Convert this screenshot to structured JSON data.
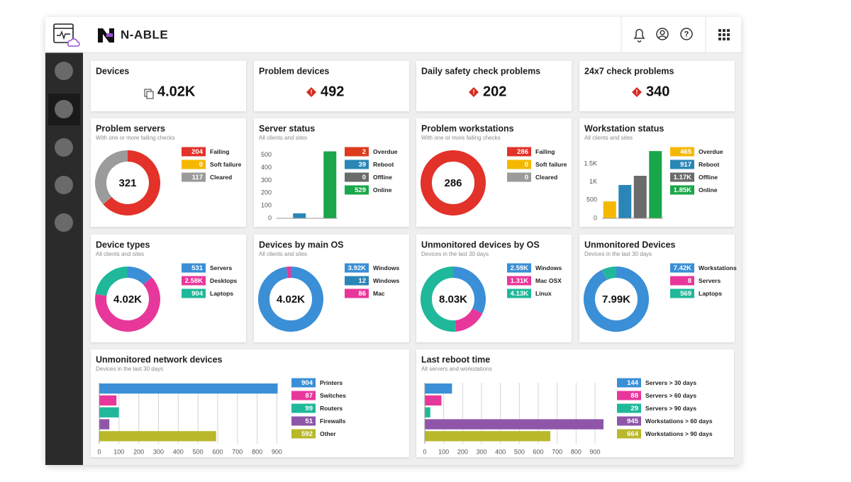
{
  "brand": "N-ABLE",
  "kpis": [
    {
      "title": "Devices",
      "value": "4.02K"
    },
    {
      "title": "Problem devices",
      "value": 492
    },
    {
      "title": "Daily safety check problems",
      "value": 202
    },
    {
      "title": "24x7 check problems",
      "value": 340
    }
  ],
  "chart_data": [
    {
      "type": "donut",
      "title": "Problem servers",
      "subtitle": "With one or more failing checks",
      "total": 321,
      "categories": [
        "Failing",
        "Soft failure",
        "Cleared"
      ],
      "values": [
        204,
        0,
        117
      ],
      "colors": [
        "#e2322a",
        "#f5b800",
        "#9b9b9b"
      ]
    },
    {
      "type": "bar",
      "title": "Server status",
      "subtitle": "All clients and sites",
      "categories": [
        "Overdue",
        "Reboot",
        "Offline",
        "Online"
      ],
      "values": [
        2,
        39,
        0,
        529
      ],
      "colors": [
        "#dd3a1e",
        "#2a86b6",
        "#6b6b6b",
        "#1aa64a"
      ],
      "ylim": [
        0,
        560
      ],
      "yticks": [
        0,
        100,
        200,
        300,
        400,
        500
      ]
    },
    {
      "type": "donut",
      "title": "Problem workstations",
      "subtitle": "With one or more failing checks",
      "total": 286,
      "categories": [
        "Failing",
        "Soft failure",
        "Cleared"
      ],
      "values": [
        286,
        0,
        0
      ],
      "colors": [
        "#e2322a",
        "#f5b800",
        "#9b9b9b"
      ]
    },
    {
      "type": "bar",
      "title": "Workstation status",
      "subtitle": "All clients and sites",
      "categories": [
        "Overdue",
        "Reboot",
        "Offline",
        "Online"
      ],
      "values": [
        465,
        917,
        1170,
        1850
      ],
      "value_labels": [
        "465",
        "917",
        "1.17K",
        "1.85K"
      ],
      "colors": [
        "#f5b800",
        "#2a86b6",
        "#6b6b6b",
        "#1aa64a"
      ],
      "ylim": [
        0,
        1950
      ],
      "yticks": [
        0,
        500,
        {
          "value": 1000,
          "label": "1K"
        },
        {
          "value": 1500,
          "label": "1.5K"
        }
      ]
    },
    {
      "type": "donut",
      "title": "Device types",
      "subtitle": "All clients and sites",
      "total": "4.02K",
      "categories": [
        "Servers",
        "Desktops",
        "Laptops"
      ],
      "values": [
        531,
        2580,
        904
      ],
      "value_labels": [
        "531",
        "2.58K",
        "904"
      ],
      "colors": [
        "#3a8fd6",
        "#e8379a",
        "#1fb89a"
      ]
    },
    {
      "type": "donut",
      "title": "Devices by main OS",
      "subtitle": "All clients and sites",
      "total": "4.02K",
      "categories": [
        "Windows",
        "Windows",
        "Mac"
      ],
      "values": [
        3920,
        12,
        86
      ],
      "value_labels": [
        "3.92K",
        "12",
        "86"
      ],
      "colors": [
        "#3a8fd6",
        "#2a86b6",
        "#e8379a"
      ]
    },
    {
      "type": "donut",
      "title": "Unmonitored devices by OS",
      "subtitle": "Devices in the last 30 days",
      "total": "8.03K",
      "categories": [
        "Windows",
        "Mac OSX",
        "Linux"
      ],
      "values": [
        2590,
        1310,
        4130
      ],
      "value_labels": [
        "2.59K",
        "1.31K",
        "4.13K"
      ],
      "colors": [
        "#3a8fd6",
        "#e8379a",
        "#1fb89a"
      ]
    },
    {
      "type": "donut",
      "title": "Unmonitored Devices",
      "subtitle": "Devices in the last 30 days",
      "total": "7.99K",
      "categories": [
        "Workstations",
        "Servers",
        "Laptops"
      ],
      "values": [
        7420,
        8,
        569
      ],
      "value_labels": [
        "7.42K",
        "8",
        "569"
      ],
      "colors": [
        "#3a8fd6",
        "#e8379a",
        "#1fb89a"
      ]
    },
    {
      "type": "hbar",
      "title": "Unmonitored network devices",
      "subtitle": "Devices in the last 30 days",
      "categories": [
        "Printers",
        "Switches",
        "Routers",
        "Firewalls",
        "Other"
      ],
      "values": [
        904,
        87,
        99,
        51,
        592
      ],
      "colors": [
        "#3a8fd6",
        "#e8379a",
        "#1fb89a",
        "#8e55a8",
        "#b8b82a"
      ],
      "xlim": [
        0,
        920
      ],
      "xticks": [
        0,
        100,
        200,
        300,
        400,
        500,
        600,
        700,
        800,
        900
      ],
      "grid": true
    },
    {
      "type": "hbar",
      "title": "Last reboot time",
      "subtitle": "All servers and workstations",
      "categories": [
        "Servers > 30 days",
        "Servers > 60 days",
        "Servers > 90 days",
        "Workstations > 60 days",
        "Workstations > 90 days"
      ],
      "values": [
        144,
        88,
        29,
        945,
        664
      ],
      "colors": [
        "#3a8fd6",
        "#e8379a",
        "#1fb89a",
        "#8e55a8",
        "#b8b82a"
      ],
      "xlim": [
        0,
        960
      ],
      "xticks": [
        0,
        100,
        200,
        300,
        400,
        500,
        600,
        700,
        800,
        900
      ],
      "grid": true
    }
  ]
}
